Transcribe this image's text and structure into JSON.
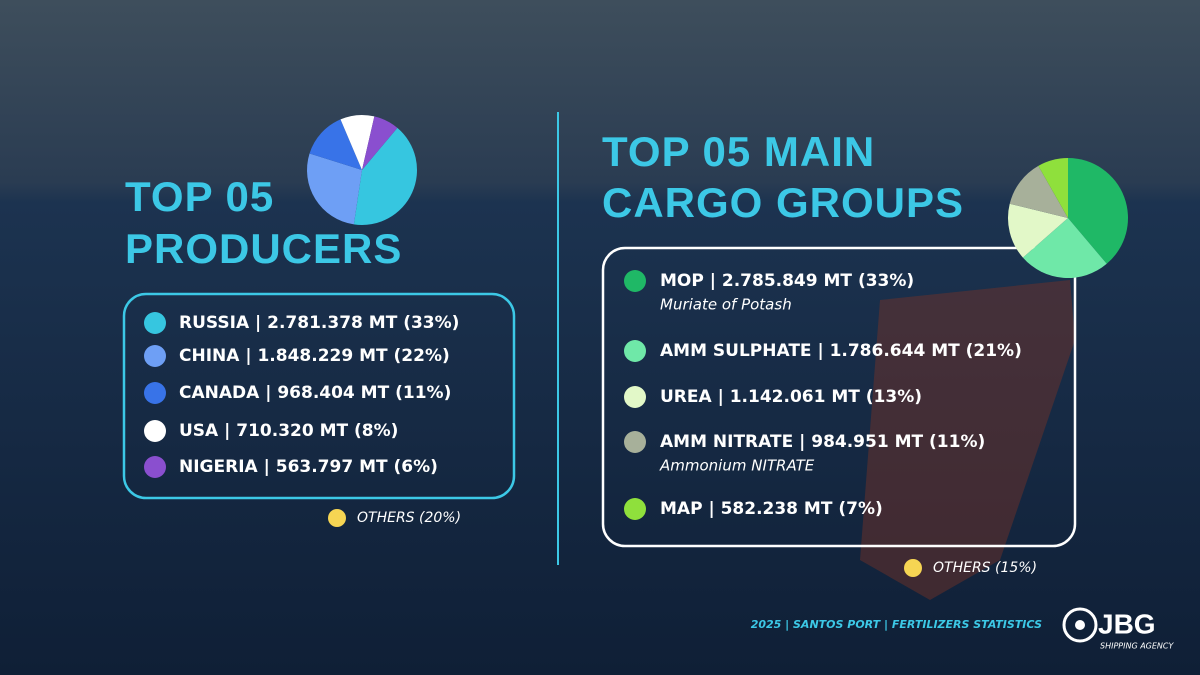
{
  "chart_data": [
    {
      "type": "pie",
      "title_lines": [
        "TOP 05",
        "PRODUCERS"
      ],
      "labels": [
        "RUSSIA | 2.781.378 MT (33%)",
        "CHINA | 1.848.229 MT (22%)",
        "CANADA | 968.404 MT (11%)",
        "USA | 710.320 MT (8%)",
        "NIGERIA | 563.797 MT (6%)"
      ],
      "values": [
        33,
        22,
        11,
        8,
        6
      ],
      "colors": [
        "#36c6e0",
        "#6e9ff5",
        "#3873e8",
        "#ffffff",
        "#8a4fcf"
      ],
      "notes": [
        null,
        null,
        null,
        null,
        null
      ],
      "others": {
        "label": "OTHERS (20%)",
        "value": 20,
        "color": "#f6d553"
      }
    },
    {
      "type": "pie",
      "title_lines": [
        "TOP 05 MAIN",
        "CARGO GROUPS"
      ],
      "labels": [
        "MOP | 2.785.849 MT (33%)",
        "AMM SULPHATE | 1.786.644 MT (21%)",
        "UREA | 1.142.061 MT (13%)",
        "AMM NITRATE | 984.951 MT (11%)",
        "MAP | 582.238 MT (7%)"
      ],
      "values": [
        33,
        21,
        13,
        11,
        7
      ],
      "colors": [
        "#1fb866",
        "#6fe8a8",
        "#e2f8c8",
        "#a7b09a",
        "#8fe03c"
      ],
      "notes": [
        "Muriate of Potash",
        null,
        null,
        "Ammonium NITRATE",
        null
      ],
      "others": {
        "label": "OTHERS (15%)",
        "value": 15,
        "color": "#f6d553"
      }
    }
  ],
  "footer": "2025 | SANTOS PORT | FERTILIZERS STATISTICS",
  "logo": {
    "name": "JBG",
    "tagline": "SHIPPING AGENCY"
  }
}
